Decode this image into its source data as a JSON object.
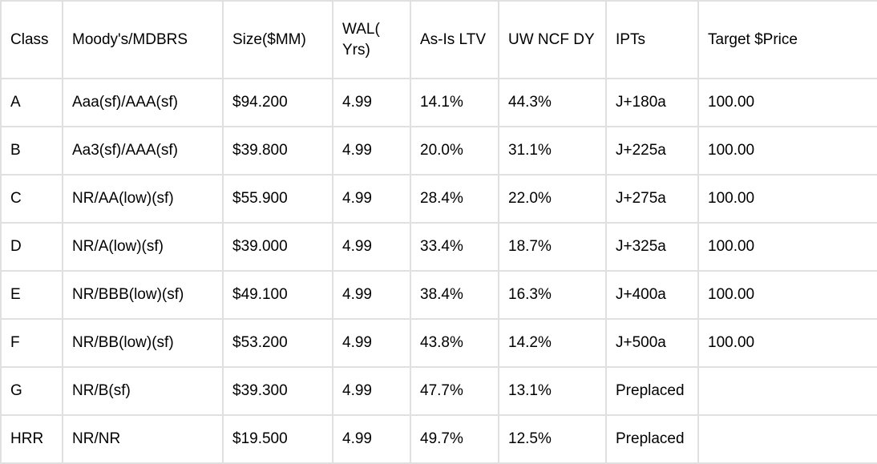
{
  "table": {
    "headers": {
      "class": "Class",
      "rating": "Moody's/MDBRS",
      "size": "Size($MM)",
      "wal": "WAL(\nYrs)",
      "ltv": "As-Is LTV",
      "ncf": "UW NCF DY",
      "ipts": "IPTs",
      "price": "Target $Price"
    },
    "rows": [
      {
        "class": "A",
        "rating": "Aaa(sf)/AAA(sf)",
        "size": "$94.200",
        "wal": "4.99",
        "ltv": "14.1%",
        "ncf": "44.3%",
        "ipts": "J+180a",
        "price": "100.00"
      },
      {
        "class": "B",
        "rating": "Aa3(sf)/AAA(sf)",
        "size": "$39.800",
        "wal": "4.99",
        "ltv": "20.0%",
        "ncf": "31.1%",
        "ipts": "J+225a",
        "price": "100.00"
      },
      {
        "class": "C",
        "rating": "NR/AA(low)(sf)",
        "size": "$55.900",
        "wal": "4.99",
        "ltv": "28.4%",
        "ncf": "22.0%",
        "ipts": "J+275a",
        "price": "100.00"
      },
      {
        "class": "D",
        "rating": "NR/A(low)(sf)",
        "size": "$39.000",
        "wal": "4.99",
        "ltv": "33.4%",
        "ncf": "18.7%",
        "ipts": "J+325a",
        "price": "100.00"
      },
      {
        "class": "E",
        "rating": "NR/BBB(low)(sf)",
        "size": "$49.100",
        "wal": "4.99",
        "ltv": "38.4%",
        "ncf": "16.3%",
        "ipts": "J+400a",
        "price": "100.00"
      },
      {
        "class": "F",
        "rating": "NR/BB(low)(sf)",
        "size": "$53.200",
        "wal": "4.99",
        "ltv": "43.8%",
        "ncf": "14.2%",
        "ipts": "J+500a",
        "price": "100.00"
      },
      {
        "class": "G",
        "rating": "NR/B(sf)",
        "size": "$39.300",
        "wal": "4.99",
        "ltv": "47.7%",
        "ncf": "13.1%",
        "ipts": "Preplaced",
        "price": ""
      },
      {
        "class": "HRR",
        "rating": "NR/NR",
        "size": "$19.500",
        "wal": "4.99",
        "ltv": "49.7%",
        "ncf": "12.5%",
        "ipts": "Preplaced",
        "price": ""
      }
    ]
  },
  "colors": {
    "border": "#e0e0e0",
    "text": "#000000",
    "background": "#ffffff"
  }
}
